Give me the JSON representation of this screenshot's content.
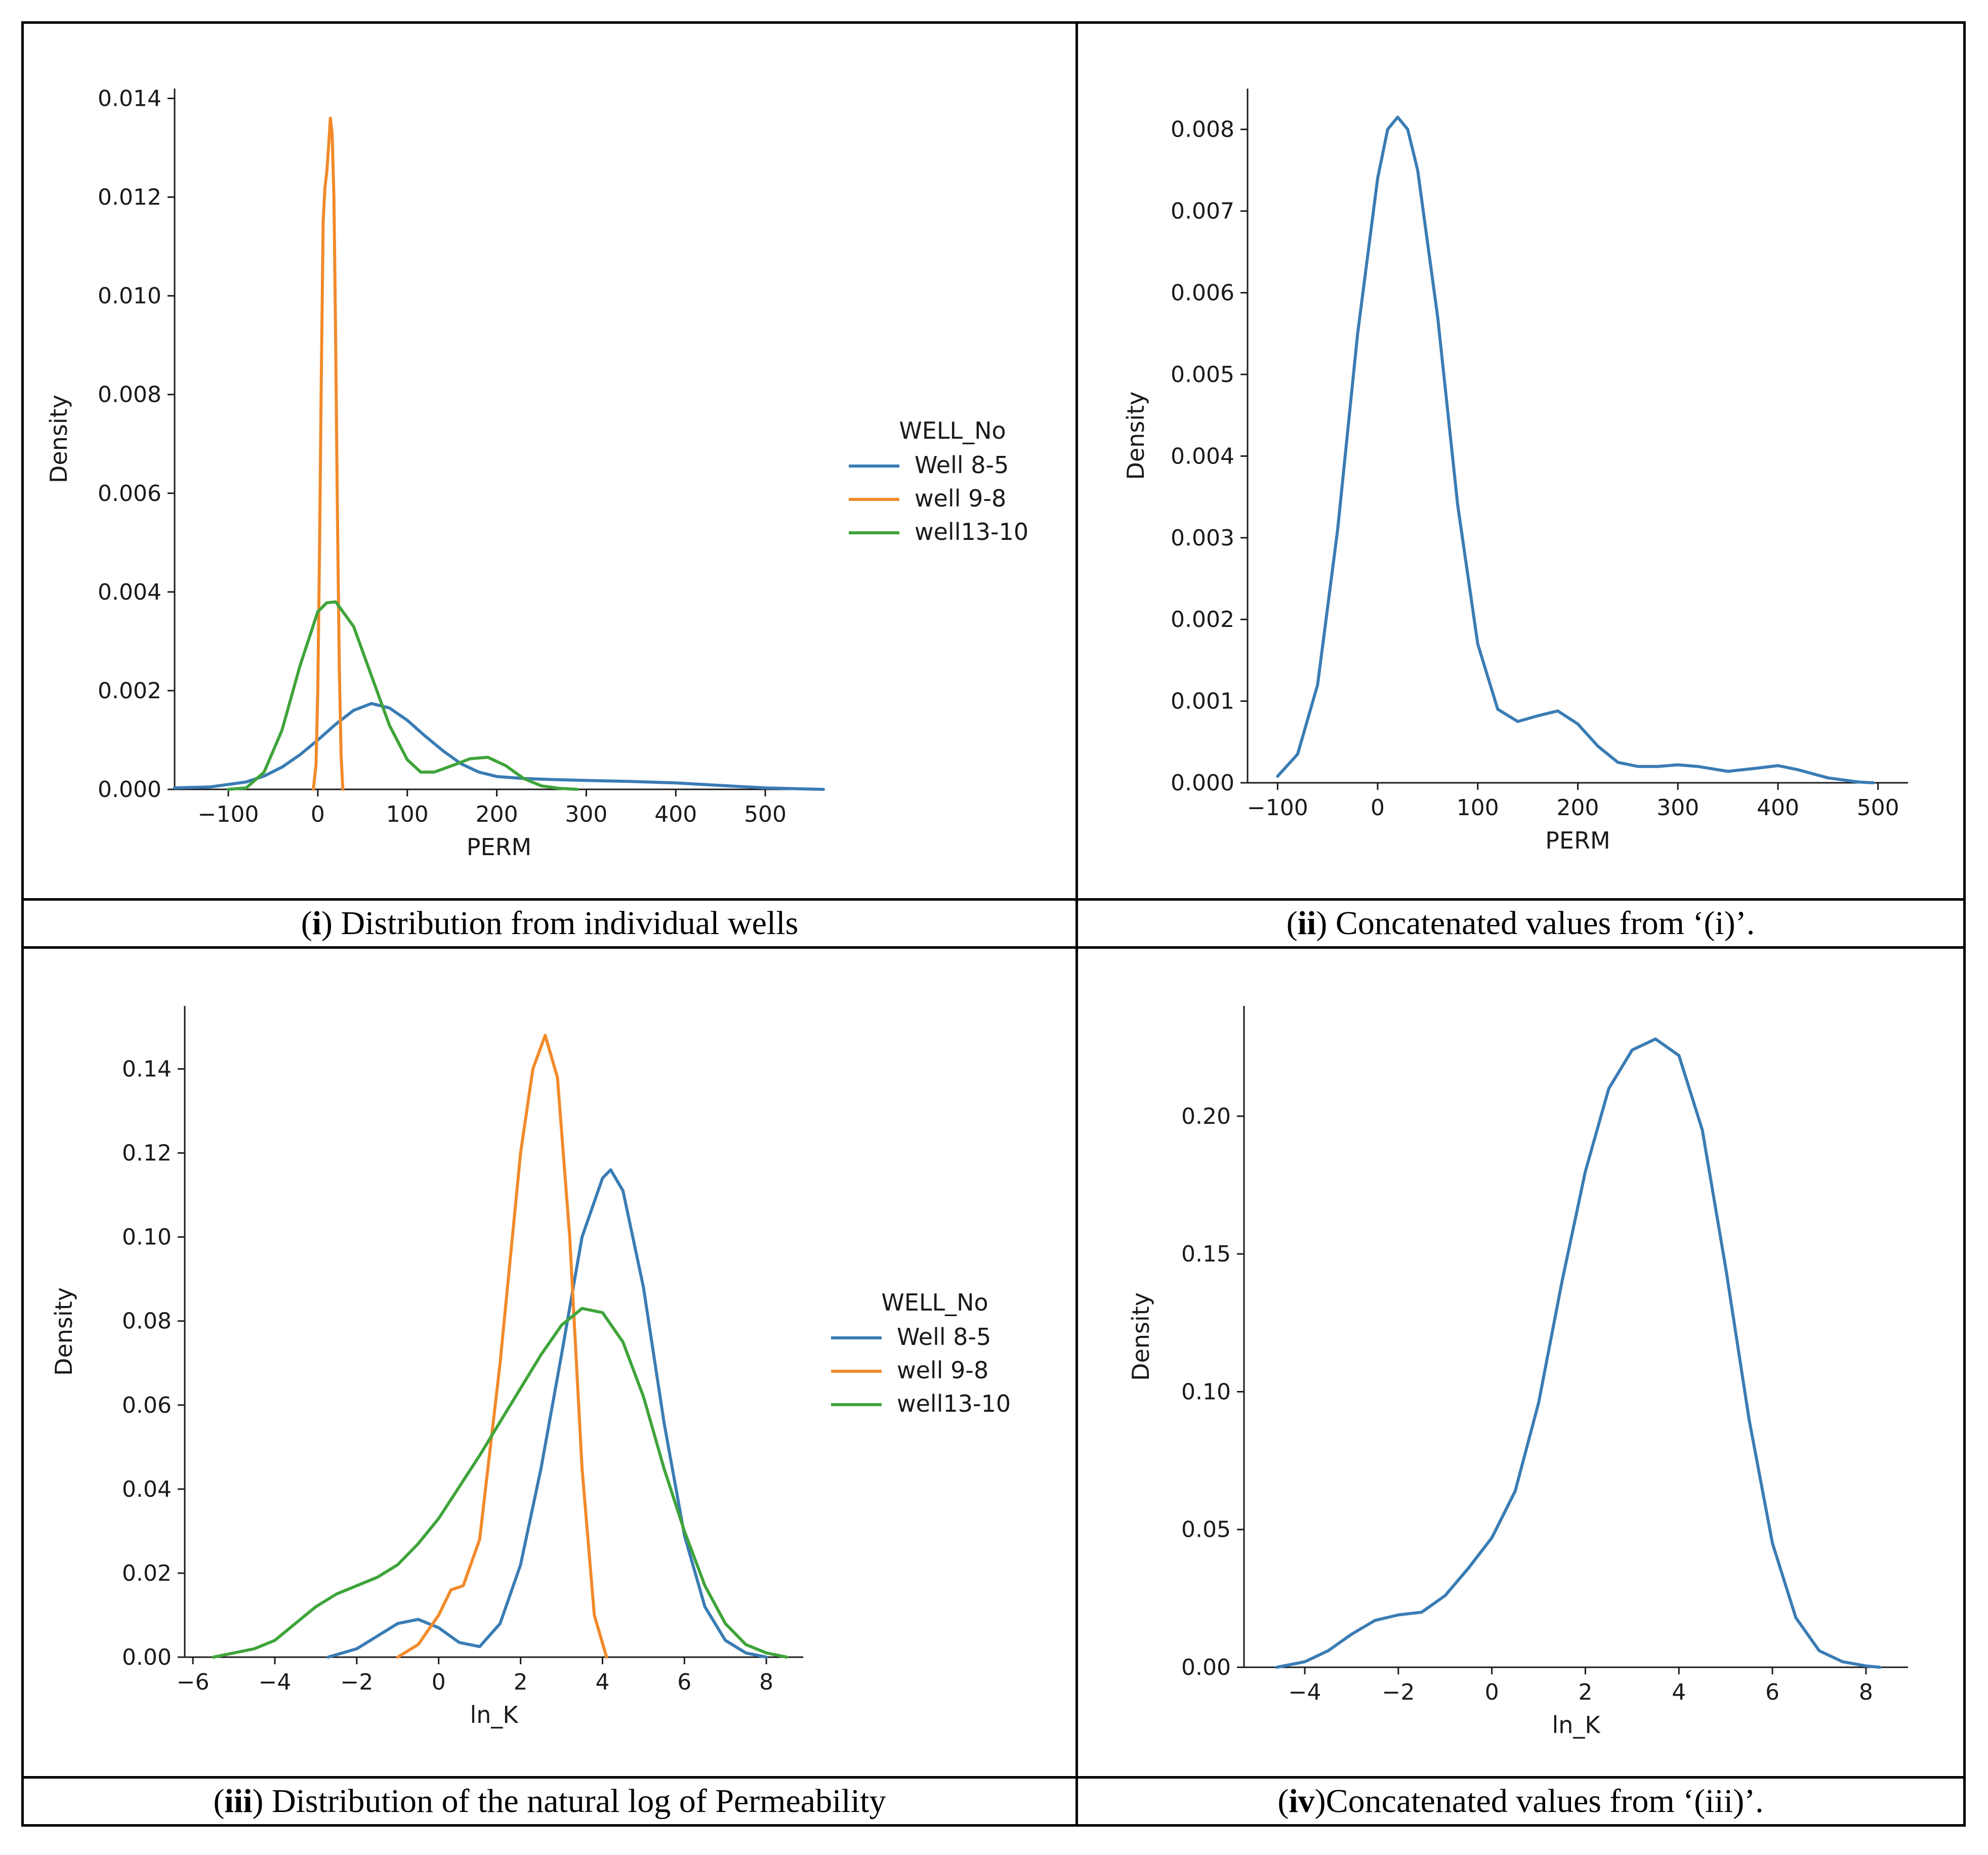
{
  "captions": [
    {
      "label": "i",
      "text": " Distribution from individual wells"
    },
    {
      "label": "ii",
      "text": " Concatenated values from ‘(i)’."
    },
    {
      "label": "iii",
      "text": " Distribution of the natural log of Permeability"
    },
    {
      "label": "iv",
      "text": "Concatenated values from ‘(iii)’."
    }
  ],
  "colors": {
    "well_8_5": "#3a7cb4",
    "well_9_8": "#f28a2a",
    "well13_10": "#3fa43a",
    "axis": "#1a1a1a"
  },
  "chart_data": [
    {
      "type": "line",
      "panel": "i",
      "title": "",
      "xlabel": "PERM",
      "ylabel": "Density",
      "xlim": [
        -160,
        565
      ],
      "ylim": [
        0,
        0.0142
      ],
      "xticks": [
        -100,
        0,
        100,
        200,
        300,
        400,
        500
      ],
      "xtick_labels": [
        "−100",
        "0",
        "100",
        "200",
        "300",
        "400",
        "500"
      ],
      "yticks": [
        0,
        0.002,
        0.004,
        0.006,
        0.008,
        0.01,
        0.012,
        0.014
      ],
      "ytick_labels": [
        "0.000",
        "0.002",
        "0.004",
        "0.006",
        "0.008",
        "0.010",
        "0.012",
        "0.014"
      ],
      "legend": {
        "title": "WELL_No",
        "position": "center-right"
      },
      "series": [
        {
          "name": "Well 8-5",
          "color": "#3a7cb4",
          "x": [
            -160,
            -120,
            -80,
            -60,
            -40,
            -20,
            0,
            20,
            40,
            60,
            80,
            100,
            120,
            140,
            160,
            180,
            200,
            230,
            260,
            300,
            350,
            400,
            430,
            460,
            500,
            540,
            565
          ],
          "y": [
            3e-05,
            5e-05,
            0.00015,
            0.00027,
            0.00045,
            0.0007,
            0.001,
            0.00132,
            0.0016,
            0.00174,
            0.00165,
            0.0014,
            0.00108,
            0.00078,
            0.00052,
            0.00035,
            0.00026,
            0.00022,
            0.0002,
            0.00018,
            0.00016,
            0.00013,
            0.0001,
            7e-05,
            3e-05,
            1e-05,
            0.0
          ]
        },
        {
          "name": "well 9-8",
          "color": "#f28a2a",
          "x": [
            -5,
            -2,
            0,
            2,
            4,
            6,
            8,
            10,
            12,
            14,
            16,
            18,
            20,
            22,
            24,
            26,
            28
          ],
          "y": [
            0.0,
            0.0005,
            0.002,
            0.005,
            0.0085,
            0.0115,
            0.0122,
            0.0125,
            0.013,
            0.0136,
            0.0133,
            0.012,
            0.009,
            0.0055,
            0.0025,
            0.0007,
            0.0
          ]
        },
        {
          "name": "well13-10",
          "color": "#3fa43a",
          "x": [
            -100,
            -80,
            -60,
            -40,
            -20,
            0,
            10,
            20,
            40,
            60,
            80,
            100,
            115,
            130,
            150,
            170,
            190,
            210,
            230,
            250,
            270,
            290
          ],
          "y": [
            0.0,
            3e-05,
            0.00035,
            0.0012,
            0.0025,
            0.0036,
            0.00378,
            0.0038,
            0.0033,
            0.0023,
            0.0013,
            0.0006,
            0.00035,
            0.00035,
            0.00048,
            0.00062,
            0.00065,
            0.00048,
            0.00022,
            7e-05,
            2e-05,
            0.0
          ]
        }
      ]
    },
    {
      "type": "line",
      "panel": "ii",
      "title": "",
      "xlabel": "PERM",
      "ylabel": "Density",
      "xlim": [
        -130,
        530
      ],
      "ylim": [
        0,
        0.0085
      ],
      "xticks": [
        -100,
        0,
        100,
        200,
        300,
        400,
        500
      ],
      "xtick_labels": [
        "−100",
        "0",
        "100",
        "200",
        "300",
        "400",
        "500"
      ],
      "yticks": [
        0,
        0.001,
        0.002,
        0.003,
        0.004,
        0.005,
        0.006,
        0.007,
        0.008
      ],
      "ytick_labels": [
        "0.000",
        "0.001",
        "0.002",
        "0.003",
        "0.004",
        "0.005",
        "0.006",
        "0.007",
        "0.008"
      ],
      "series": [
        {
          "name": "PERM",
          "color": "#3a7cb4",
          "x": [
            -100,
            -80,
            -60,
            -40,
            -20,
            0,
            10,
            20,
            30,
            40,
            60,
            80,
            100,
            120,
            140,
            160,
            180,
            200,
            220,
            240,
            260,
            280,
            300,
            320,
            350,
            380,
            400,
            420,
            450,
            480,
            495
          ],
          "y": [
            8e-05,
            0.00035,
            0.0012,
            0.0031,
            0.0055,
            0.0074,
            0.008,
            0.00815,
            0.008,
            0.0075,
            0.0057,
            0.0034,
            0.0017,
            0.0009,
            0.00075,
            0.00082,
            0.00088,
            0.00072,
            0.00045,
            0.00025,
            0.0002,
            0.0002,
            0.00022,
            0.0002,
            0.00014,
            0.00018,
            0.00021,
            0.00016,
            6e-05,
            1e-05,
            0.0
          ]
        }
      ]
    },
    {
      "type": "line",
      "panel": "iii",
      "title": "",
      "xlabel": "ln_K",
      "ylabel": "Density",
      "xlim": [
        -6.2,
        8.9
      ],
      "ylim": [
        0,
        0.155
      ],
      "xticks": [
        -6,
        -4,
        -2,
        0,
        2,
        4,
        6,
        8
      ],
      "xtick_labels": [
        "−6",
        "−4",
        "−2",
        "0",
        "2",
        "4",
        "6",
        "8"
      ],
      "yticks": [
        0,
        0.02,
        0.04,
        0.06,
        0.08,
        0.1,
        0.12,
        0.14
      ],
      "ytick_labels": [
        "0.00",
        "0.02",
        "0.04",
        "0.06",
        "0.08",
        "0.10",
        "0.12",
        "0.14"
      ],
      "legend": {
        "title": "WELL_No",
        "position": "center-right"
      },
      "series": [
        {
          "name": "Well 8-5",
          "color": "#3a7cb4",
          "x": [
            -2.7,
            -2,
            -1.5,
            -1,
            -0.5,
            0,
            0.5,
            1,
            1.5,
            2,
            2.5,
            3,
            3.5,
            4,
            4.2,
            4.5,
            5,
            5.5,
            6,
            6.5,
            7,
            7.5,
            8
          ],
          "y": [
            0.0,
            0.002,
            0.005,
            0.008,
            0.009,
            0.007,
            0.0035,
            0.0025,
            0.008,
            0.022,
            0.045,
            0.072,
            0.1,
            0.114,
            0.116,
            0.111,
            0.088,
            0.056,
            0.029,
            0.012,
            0.004,
            0.001,
            0.0
          ]
        },
        {
          "name": "well 9-8",
          "color": "#f28a2a",
          "x": [
            -1,
            -0.5,
            0,
            0.3,
            0.6,
            1,
            1.5,
            2,
            2.3,
            2.6,
            2.9,
            3.2,
            3.5,
            3.8,
            4.1
          ],
          "y": [
            0.0,
            0.003,
            0.01,
            0.016,
            0.017,
            0.028,
            0.07,
            0.12,
            0.14,
            0.148,
            0.138,
            0.1,
            0.045,
            0.01,
            0.0
          ]
        },
        {
          "name": "well13-10",
          "color": "#3fa43a",
          "x": [
            -5.5,
            -5,
            -4.5,
            -4,
            -3.5,
            -3,
            -2.5,
            -2,
            -1.5,
            -1,
            -0.5,
            0,
            1,
            2,
            2.5,
            3,
            3.5,
            4,
            4.5,
            5,
            5.5,
            6,
            6.5,
            7,
            7.5,
            8,
            8.5
          ],
          "y": [
            0.0,
            0.001,
            0.002,
            0.004,
            0.008,
            0.012,
            0.015,
            0.017,
            0.019,
            0.022,
            0.027,
            0.033,
            0.048,
            0.064,
            0.072,
            0.079,
            0.083,
            0.082,
            0.075,
            0.062,
            0.045,
            0.03,
            0.017,
            0.008,
            0.003,
            0.001,
            0.0
          ]
        }
      ]
    },
    {
      "type": "line",
      "panel": "iv",
      "title": "",
      "xlabel": "ln_K",
      "ylabel": "Density",
      "xlim": [
        -5.3,
        8.9
      ],
      "ylim": [
        0,
        0.24
      ],
      "xticks": [
        -4,
        -2,
        0,
        2,
        4,
        6,
        8
      ],
      "xtick_labels": [
        "−4",
        "−2",
        "0",
        "2",
        "4",
        "6",
        "8"
      ],
      "yticks": [
        0,
        0.05,
        0.1,
        0.15,
        0.2
      ],
      "ytick_labels": [
        "0.00",
        "0.05",
        "0.10",
        "0.15",
        "0.20"
      ],
      "series": [
        {
          "name": "ln_K",
          "color": "#3a7cb4",
          "x": [
            -4.6,
            -4,
            -3.5,
            -3,
            -2.5,
            -2,
            -1.5,
            -1,
            -0.5,
            0,
            0.5,
            1,
            1.5,
            2,
            2.5,
            3,
            3.5,
            4,
            4.5,
            5,
            5.5,
            6,
            6.5,
            7,
            7.5,
            8,
            8.3
          ],
          "y": [
            0.0,
            0.002,
            0.006,
            0.012,
            0.017,
            0.019,
            0.02,
            0.026,
            0.036,
            0.047,
            0.064,
            0.096,
            0.14,
            0.18,
            0.21,
            0.224,
            0.228,
            0.222,
            0.195,
            0.145,
            0.09,
            0.045,
            0.018,
            0.006,
            0.002,
            0.0005,
            0.0
          ]
        }
      ]
    }
  ]
}
